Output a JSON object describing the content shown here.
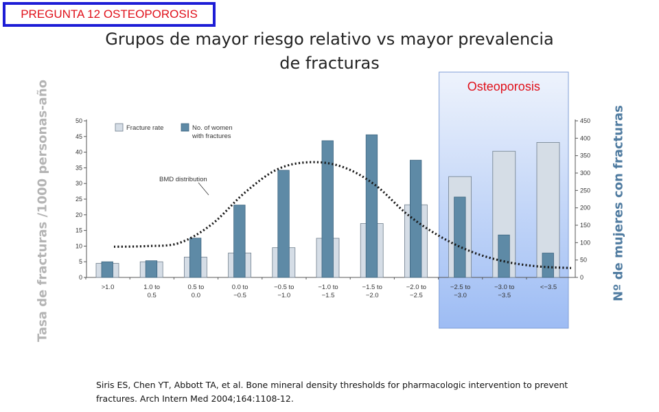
{
  "badge": "PREGUNTA 12 OSTEOPOROSIS",
  "title_line1": "Grupos de mayor riesgo relativo vs mayor prevalencia",
  "title_line2": "de fracturas",
  "ylabel_left": "Tasa de fracturas /1000 personas-año",
  "ylabel_right": "Nº de mujeres con fracturas",
  "citation": "Siris ES, Chen YT, Abbott TA, et al. Bone mineral density thresholds for pharmacologic intervention to prevent fractures. Arch Intern Med 2004;164:1108-12.",
  "highlight_label": "Osteoporosis",
  "colors": {
    "fracture_rate_fill": "#d5dde6",
    "women_fill": "#5e8aa6",
    "highlight_top": "#eef3fc",
    "highlight_bottom": "#9dbcf4",
    "highlight_border": "#7f9ed6",
    "highlight_text": "#e0101a",
    "badge_border": "#1d1dd6"
  },
  "chart_data": {
    "type": "bar",
    "categories": [
      [
        ">1.0"
      ],
      [
        "1.0 to",
        "0.5"
      ],
      [
        "0.5 to",
        "0.0"
      ],
      [
        "0.0 to",
        "−0.5"
      ],
      [
        "−0.5 to",
        "−1.0"
      ],
      [
        "−1.0 to",
        "−1.5"
      ],
      [
        "−1.5 to",
        "−2.0"
      ],
      [
        "−2.0 to",
        "−2.5"
      ],
      [
        "−2.5 to",
        "−3.0"
      ],
      [
        "−3.0 to",
        "−3.5"
      ],
      [
        "<−3.5"
      ]
    ],
    "series": [
      {
        "name": "Fracture rate",
        "axis": "left",
        "values": [
          4.5,
          5,
          6.5,
          7.8,
          9.5,
          12.5,
          17.2,
          23.2,
          32.2,
          40.3,
          43.1
        ]
      },
      {
        "name": "No. of women with fractures",
        "axis": "right",
        "values": [
          45,
          48,
          113,
          208,
          308,
          393,
          410,
          337,
          231,
          122,
          70
        ]
      }
    ],
    "curve": {
      "name": "BMD distribution",
      "values_left_axis": [
        9.8,
        10,
        11,
        17,
        27,
        34.5,
        36.8,
        35.3,
        29.5,
        20,
        13,
        8,
        5,
        3.5,
        3
      ]
    },
    "legend": [
      "Fracture rate",
      "No. of women",
      "with fractures"
    ],
    "yleft": {
      "min": 0,
      "max": 50,
      "ticks": [
        0,
        5,
        10,
        15,
        20,
        25,
        30,
        35,
        40,
        45,
        50
      ]
    },
    "yright": {
      "min": 0,
      "max": 450,
      "ticks": [
        0,
        50,
        100,
        150,
        200,
        250,
        300,
        350,
        400,
        450
      ]
    },
    "highlight_categories": [
      8,
      10
    ]
  }
}
